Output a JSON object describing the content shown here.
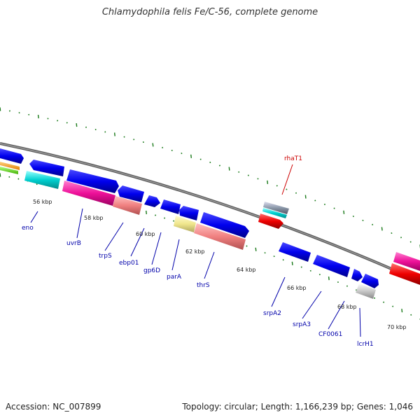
{
  "title": "Chlamydophila felis Fe/C-56, complete genome",
  "footer": {
    "accession": "Accession: NC_007899",
    "summary": "Topology: circular; Length: 1,166,239 bp; Genes: 1,046"
  },
  "colors": {
    "backbone": "#808080",
    "tick": "#1a7a1a",
    "label_blue": "#0000aa",
    "label_red": "#cc0000"
  },
  "tick_labels": [
    "56 kbp",
    "58 kbp",
    "60 kbp",
    "62 kbp",
    "64 kbp",
    "66 kbp",
    "68 kbp",
    "70 kbp"
  ],
  "gene_labels": [
    {
      "text": "eno",
      "color": "#0000aa"
    },
    {
      "text": "uvrB",
      "color": "#0000aa"
    },
    {
      "text": "trpS",
      "color": "#0000aa"
    },
    {
      "text": "ebp01",
      "color": "#0000aa"
    },
    {
      "text": "gp6D",
      "color": "#0000aa"
    },
    {
      "text": "parA",
      "color": "#0000aa"
    },
    {
      "text": "thrS",
      "color": "#0000aa"
    },
    {
      "text": "srpA2",
      "color": "#0000aa"
    },
    {
      "text": "srpA3",
      "color": "#0000aa"
    },
    {
      "text": "CF0061",
      "color": "#0000aa"
    },
    {
      "text": "lcrH1",
      "color": "#0000aa"
    },
    {
      "text": "rhaT1",
      "color": "#cc0000"
    }
  ]
}
